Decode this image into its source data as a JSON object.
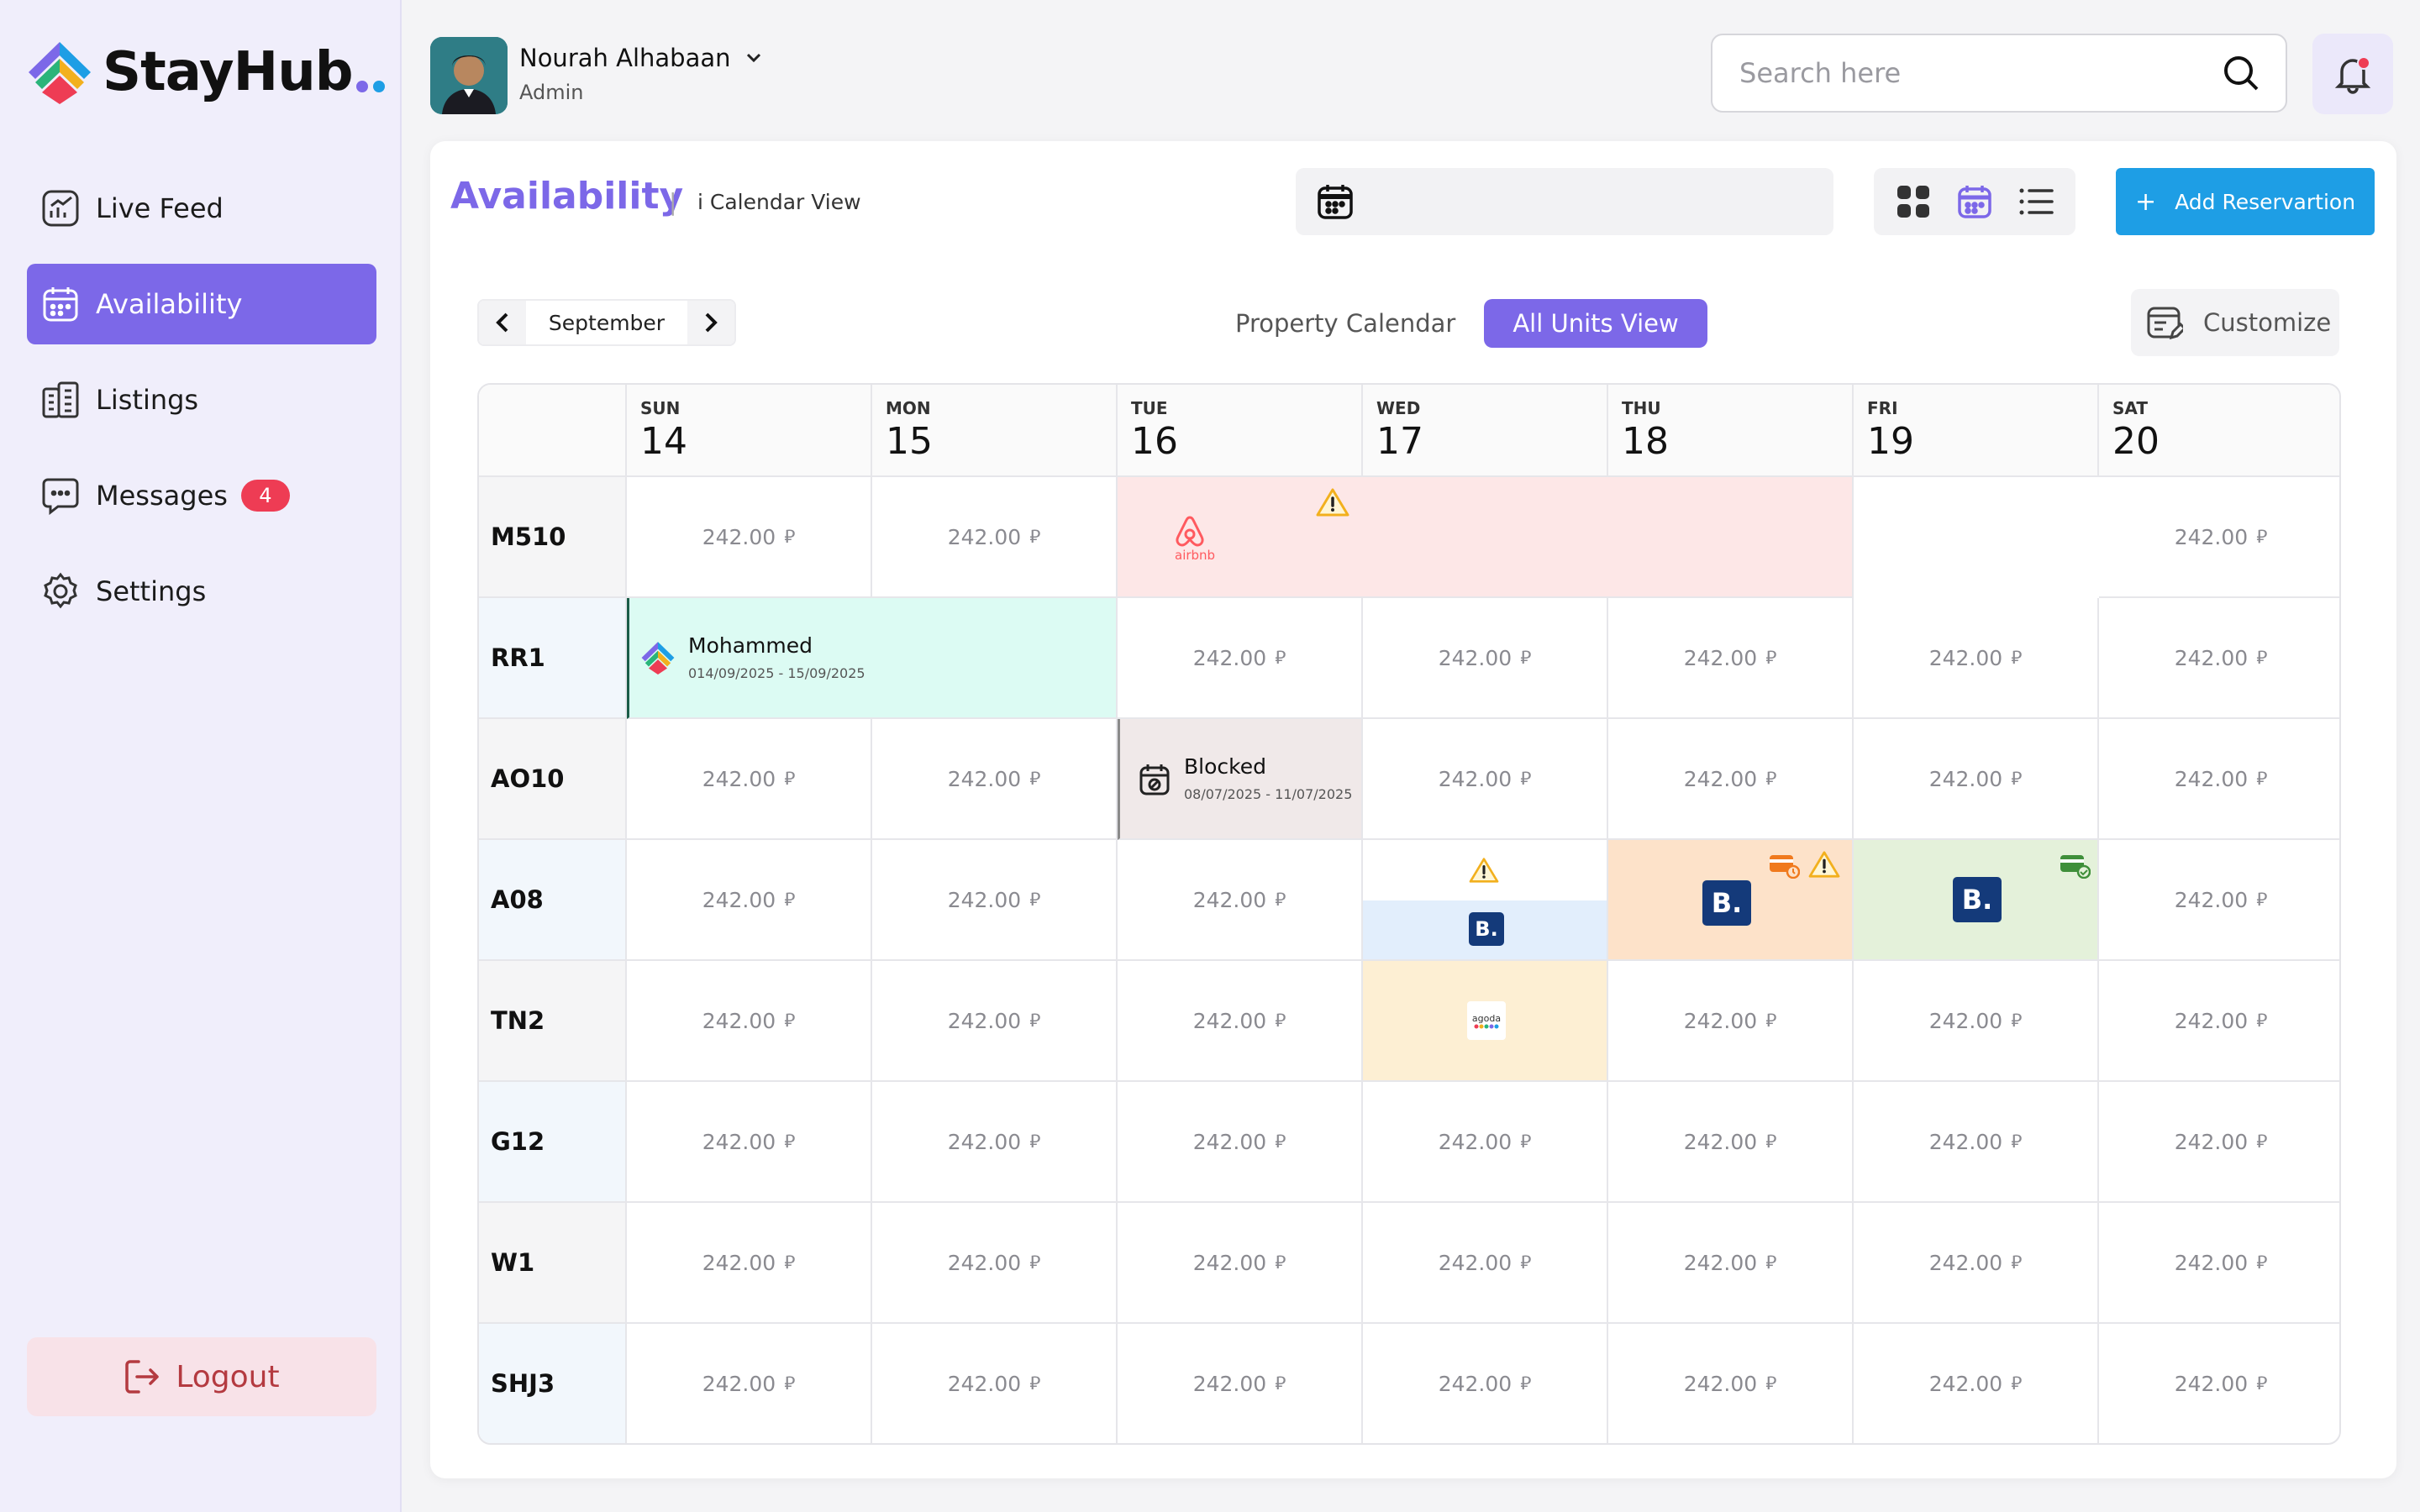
{
  "brand": {
    "name": "StayHub",
    "dot_colors": [
      "#7c68e8",
      "#1e9ee5"
    ]
  },
  "sidebar": {
    "items": [
      {
        "label": "Live Feed",
        "icon": "chart-icon",
        "active": false
      },
      {
        "label": "Availability",
        "icon": "calendar-icon",
        "active": true
      },
      {
        "label": "Listings",
        "icon": "building-icon",
        "active": false
      },
      {
        "label": "Messages",
        "icon": "message-icon",
        "active": false,
        "badge": "4"
      },
      {
        "label": "Settings",
        "icon": "gear-icon",
        "active": false
      }
    ],
    "logout_label": "Logout"
  },
  "user": {
    "name": "Nourah Alhabaan",
    "role": "Admin"
  },
  "search": {
    "placeholder": "Search here"
  },
  "page": {
    "title": "Availability",
    "separator": "|",
    "subtitle": "i Calendar View",
    "add_button": "Add Reservartion",
    "add_plus": "+",
    "month": "September",
    "tabs": [
      "Property Calendar",
      "All Units View"
    ],
    "active_tab": "All Units View",
    "customize": "Customize"
  },
  "calendar": {
    "days": [
      {
        "dow": "SUN",
        "num": "14"
      },
      {
        "dow": "MON",
        "num": "15"
      },
      {
        "dow": "TUE",
        "num": "16"
      },
      {
        "dow": "WED",
        "num": "17"
      },
      {
        "dow": "THU",
        "num": "18"
      },
      {
        "dow": "FRI",
        "num": "19"
      },
      {
        "dow": "SAT",
        "num": "20"
      }
    ],
    "units": [
      "M510",
      "RR1",
      "AO10",
      "A08",
      "TN2",
      "G12",
      "W1",
      "SHJ3"
    ],
    "price": "242.00",
    "currency": "⃁",
    "reservation": {
      "guest": "Mohammed",
      "dates": "014/09/2025 - 15/09/2025"
    },
    "blocked": {
      "label": "Blocked",
      "dates": "08/07/2025 - 11/07/2025"
    },
    "airbnb_label": "airbnb",
    "booking_letter": "B.",
    "agoda_label": "agoda",
    "colors": {
      "accent": "#7c68e8",
      "airbnb": "#ff5a5f",
      "booking": "#143a7a",
      "warning": "#f2b01e"
    }
  }
}
